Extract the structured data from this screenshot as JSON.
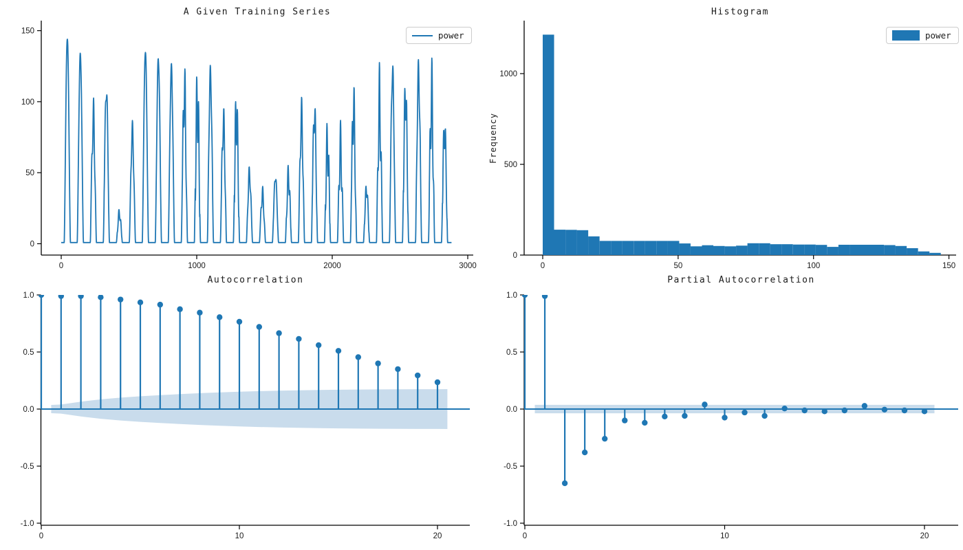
{
  "figure": {
    "accent_color": "#1f77b4",
    "band_color": "#c9dcec",
    "axis_color": "#000000",
    "background": "#ffffff"
  },
  "chart_data": [
    {
      "type": "line",
      "title": "A Given Training Series",
      "legend_label": "power",
      "xtick_labels": [
        "0",
        "1000",
        "2000",
        "3000"
      ],
      "xtick_values": [
        0,
        1000,
        2000,
        3000
      ],
      "ytick_labels": [
        "0",
        "50",
        "100",
        "150"
      ],
      "ytick_values": [
        0,
        50,
        100,
        150
      ],
      "xlim": [
        -60,
        3040
      ],
      "ylim": [
        -8,
        157
      ],
      "day_length": 96,
      "sunrise": 22,
      "daylight": 46,
      "baseline": 0.8,
      "day_peaks": [
        147,
        135,
        104,
        115,
        25,
        87,
        138,
        134,
        127,
        131,
        131,
        126,
        99,
        116,
        55,
        41,
        50,
        57,
        104,
        105,
        90,
        87,
        119,
        44,
        128,
        129,
        124,
        131,
        134,
        95
      ],
      "day_noise": [
        0.02,
        0.03,
        0.3,
        0.12,
        0.3,
        0.2,
        0.03,
        0.05,
        0.06,
        0.35,
        0.45,
        0.12,
        0.28,
        0.4,
        0.22,
        0.3,
        0.12,
        0.35,
        0.3,
        0.25,
        0.45,
        0.45,
        0.4,
        0.25,
        0.45,
        0.12,
        0.3,
        0.18,
        0.45,
        0.3
      ]
    },
    {
      "type": "bar",
      "title": "Histogram",
      "ylabel": "Frequency",
      "legend_label": "power",
      "xtick_labels": [
        "0",
        "50",
        "100",
        "150"
      ],
      "xtick_values": [
        0,
        50,
        100,
        150
      ],
      "ytick_labels": [
        "0",
        "500",
        "1000"
      ],
      "ytick_values": [
        0,
        500,
        1000
      ],
      "xlim": [
        -7,
        152
      ],
      "ylim": [
        0,
        1292
      ],
      "bin_start": 0,
      "bin_width": 4.2,
      "frequencies": [
        1215,
        140,
        139,
        137,
        103,
        78,
        78,
        78,
        78,
        78,
        78,
        78,
        64,
        48,
        54,
        50,
        48,
        52,
        65,
        65,
        60,
        60,
        58,
        58,
        56,
        45,
        57,
        57,
        57,
        57,
        55,
        50,
        38,
        20,
        12
      ]
    },
    {
      "type": "stem",
      "title": "Autocorrelation",
      "xtick_labels": [
        "0",
        "10",
        "20"
      ],
      "xtick_values": [
        0,
        10,
        20
      ],
      "ytick_labels": [
        "1.0",
        "0.5",
        "0.0",
        "-0.5",
        "-1.0"
      ],
      "ytick_values": [
        1.0,
        0.5,
        0.0,
        -0.5,
        -1.0
      ],
      "xlim": [
        -0.6,
        21.6
      ],
      "ylim": [
        -1.02,
        1.0
      ],
      "lags": [
        0,
        1,
        2,
        3,
        4,
        5,
        6,
        7,
        8,
        9,
        10,
        11,
        12,
        13,
        14,
        15,
        16,
        17,
        18,
        19,
        20
      ],
      "values": [
        1.0,
        0.99,
        0.99,
        0.98,
        0.96,
        0.935,
        0.915,
        0.875,
        0.845,
        0.805,
        0.765,
        0.72,
        0.665,
        0.615,
        0.56,
        0.51,
        0.455,
        0.4,
        0.35,
        0.295,
        0.235
      ],
      "conf_lags": [
        0.5,
        1,
        2,
        3,
        4,
        5,
        6,
        7,
        8,
        9,
        10,
        11,
        12,
        13,
        14,
        15,
        16,
        17,
        18,
        19,
        20,
        20.5
      ],
      "conf_upper": [
        0.036,
        0.04,
        0.065,
        0.085,
        0.1,
        0.112,
        0.122,
        0.131,
        0.139,
        0.146,
        0.152,
        0.157,
        0.161,
        0.164,
        0.167,
        0.169,
        0.171,
        0.172,
        0.173,
        0.174,
        0.174,
        0.175
      ]
    },
    {
      "type": "stem",
      "title": "Partial Autocorrelation",
      "xtick_labels": [
        "0",
        "10",
        "20"
      ],
      "xtick_values": [
        0,
        10,
        20
      ],
      "ytick_labels": [
        "1.0",
        "0.5",
        "0.0",
        "-0.5",
        "-1.0"
      ],
      "ytick_values": [
        1.0,
        0.5,
        0.0,
        -0.5,
        -1.0
      ],
      "xlim": [
        -0.6,
        21.7
      ],
      "ylim": [
        -1.02,
        1.0
      ],
      "lags": [
        0,
        1,
        2,
        3,
        4,
        5,
        6,
        7,
        8,
        9,
        10,
        11,
        12,
        13,
        14,
        15,
        16,
        17,
        18,
        19,
        20
      ],
      "values": [
        1.0,
        0.99,
        -0.65,
        -0.38,
        -0.26,
        -0.1,
        -0.12,
        -0.065,
        -0.06,
        0.04,
        -0.075,
        -0.03,
        -0.06,
        0.005,
        -0.012,
        -0.02,
        -0.012,
        0.028,
        -0.005,
        -0.012,
        -0.02
      ],
      "conf_halfwidth": 0.037,
      "conf_from": 0.5,
      "conf_to": 20.5
    }
  ]
}
